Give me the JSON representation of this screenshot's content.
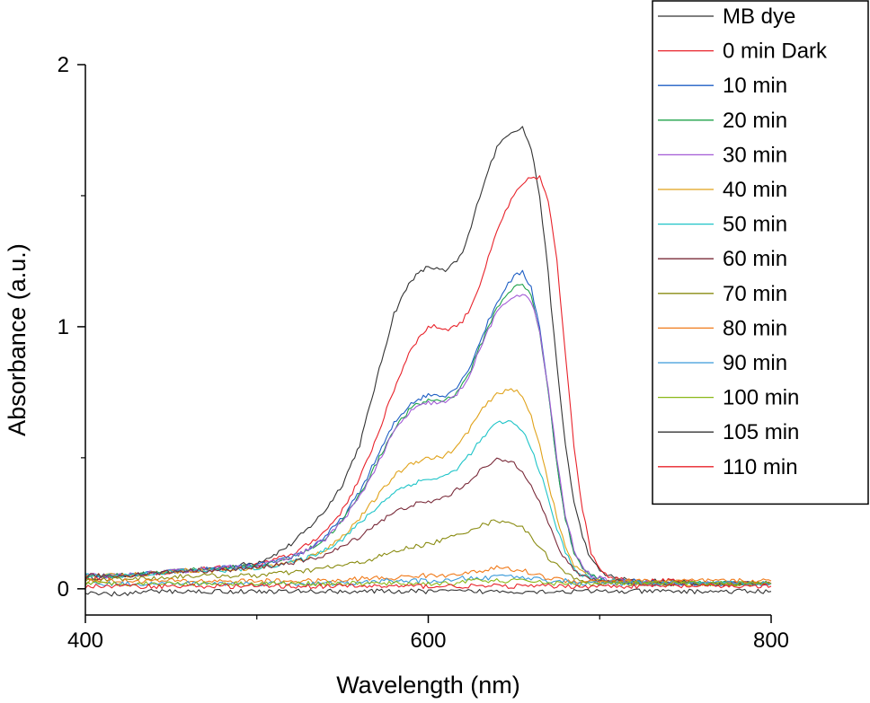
{
  "chart_data": {
    "type": "line",
    "title": "",
    "xlabel": "Wavelength (nm)",
    "ylabel": "Absorbance (a.u.)",
    "xlim": [
      400,
      800
    ],
    "ylim": [
      -0.1,
      2.0
    ],
    "x_ticks": [
      400,
      600,
      800
    ],
    "x_tick_labels": [
      "400",
      "600",
      "800"
    ],
    "x_minor_ticks": [
      500,
      700
    ],
    "y_ticks": [
      0,
      1,
      2
    ],
    "y_tick_labels": [
      "0",
      "1",
      "2"
    ],
    "y_minor_ticks": [
      0.5,
      1.5
    ],
    "grid": false,
    "legend_position": "top-right",
    "x": [
      400,
      420,
      440,
      460,
      480,
      500,
      510,
      520,
      530,
      540,
      550,
      560,
      570,
      580,
      590,
      600,
      605,
      610,
      615,
      620,
      625,
      630,
      635,
      640,
      645,
      650,
      655,
      660,
      665,
      670,
      675,
      680,
      685,
      690,
      695,
      700,
      705,
      710,
      720,
      740,
      760,
      780,
      800
    ],
    "series": [
      {
        "name": "MB dye",
        "color": "#333333",
        "values": [
          0.04,
          0.05,
          0.06,
          0.07,
          0.08,
          0.1,
          0.13,
          0.17,
          0.23,
          0.3,
          0.4,
          0.55,
          0.8,
          1.05,
          1.18,
          1.23,
          1.22,
          1.21,
          1.24,
          1.28,
          1.38,
          1.5,
          1.6,
          1.68,
          1.73,
          1.75,
          1.76,
          1.68,
          1.5,
          1.2,
          0.85,
          0.55,
          0.33,
          0.2,
          0.11,
          0.07,
          0.05,
          0.04,
          0.03,
          0.03,
          0.02,
          0.02,
          0.02
        ]
      },
      {
        "name": "0 min Dark",
        "color": "#e8222a",
        "values": [
          0.04,
          0.05,
          0.06,
          0.07,
          0.08,
          0.09,
          0.11,
          0.13,
          0.17,
          0.22,
          0.3,
          0.42,
          0.58,
          0.76,
          0.92,
          1.0,
          1.0,
          0.99,
          1.0,
          1.02,
          1.08,
          1.16,
          1.26,
          1.36,
          1.44,
          1.5,
          1.54,
          1.57,
          1.57,
          1.48,
          1.25,
          0.9,
          0.55,
          0.3,
          0.14,
          0.08,
          0.05,
          0.04,
          0.03,
          0.03,
          0.02,
          0.02,
          0.02
        ]
      },
      {
        "name": "10 min",
        "color": "#1f5fc4",
        "values": [
          0.05,
          0.05,
          0.06,
          0.07,
          0.08,
          0.09,
          0.1,
          0.12,
          0.15,
          0.2,
          0.27,
          0.37,
          0.5,
          0.63,
          0.71,
          0.74,
          0.74,
          0.74,
          0.76,
          0.8,
          0.86,
          0.94,
          1.02,
          1.09,
          1.15,
          1.19,
          1.21,
          1.15,
          1.0,
          0.75,
          0.48,
          0.27,
          0.14,
          0.08,
          0.05,
          0.04,
          0.03,
          0.03,
          0.03,
          0.02,
          0.02,
          0.02,
          0.02
        ]
      },
      {
        "name": "20 min",
        "color": "#1fa24a",
        "values": [
          0.05,
          0.05,
          0.06,
          0.07,
          0.08,
          0.09,
          0.1,
          0.12,
          0.15,
          0.19,
          0.26,
          0.36,
          0.48,
          0.61,
          0.69,
          0.72,
          0.72,
          0.72,
          0.74,
          0.78,
          0.84,
          0.92,
          1.0,
          1.07,
          1.12,
          1.15,
          1.16,
          1.12,
          0.98,
          0.75,
          0.48,
          0.27,
          0.14,
          0.08,
          0.05,
          0.04,
          0.03,
          0.03,
          0.03,
          0.02,
          0.02,
          0.02,
          0.02
        ]
      },
      {
        "name": "30 min",
        "color": "#a35ad6",
        "values": [
          0.05,
          0.05,
          0.06,
          0.07,
          0.08,
          0.09,
          0.1,
          0.12,
          0.15,
          0.19,
          0.26,
          0.35,
          0.47,
          0.6,
          0.68,
          0.71,
          0.71,
          0.71,
          0.73,
          0.77,
          0.83,
          0.91,
          0.99,
          1.05,
          1.09,
          1.12,
          1.12,
          1.1,
          0.98,
          0.76,
          0.5,
          0.28,
          0.15,
          0.08,
          0.05,
          0.04,
          0.03,
          0.03,
          0.03,
          0.02,
          0.02,
          0.02,
          0.02
        ]
      },
      {
        "name": "40 min",
        "color": "#e0a21a",
        "values": [
          0.05,
          0.05,
          0.06,
          0.07,
          0.07,
          0.08,
          0.09,
          0.1,
          0.12,
          0.15,
          0.2,
          0.27,
          0.35,
          0.43,
          0.48,
          0.5,
          0.5,
          0.51,
          0.53,
          0.57,
          0.62,
          0.67,
          0.71,
          0.74,
          0.76,
          0.76,
          0.73,
          0.66,
          0.55,
          0.41,
          0.27,
          0.16,
          0.09,
          0.06,
          0.04,
          0.03,
          0.03,
          0.03,
          0.02,
          0.02,
          0.02,
          0.02,
          0.02
        ]
      },
      {
        "name": "50 min",
        "color": "#1ec4c8",
        "values": [
          0.05,
          0.05,
          0.06,
          0.07,
          0.07,
          0.08,
          0.09,
          0.1,
          0.12,
          0.15,
          0.19,
          0.25,
          0.31,
          0.37,
          0.4,
          0.42,
          0.42,
          0.43,
          0.45,
          0.48,
          0.52,
          0.56,
          0.6,
          0.63,
          0.64,
          0.63,
          0.6,
          0.54,
          0.45,
          0.34,
          0.23,
          0.14,
          0.08,
          0.05,
          0.04,
          0.03,
          0.03,
          0.03,
          0.02,
          0.02,
          0.02,
          0.02,
          0.02
        ]
      },
      {
        "name": "60 min",
        "color": "#7a2b3a",
        "values": [
          0.05,
          0.05,
          0.06,
          0.07,
          0.07,
          0.08,
          0.09,
          0.1,
          0.11,
          0.13,
          0.16,
          0.2,
          0.25,
          0.29,
          0.32,
          0.33,
          0.34,
          0.35,
          0.37,
          0.39,
          0.42,
          0.45,
          0.47,
          0.49,
          0.49,
          0.48,
          0.45,
          0.4,
          0.33,
          0.25,
          0.17,
          0.11,
          0.07,
          0.05,
          0.04,
          0.03,
          0.03,
          0.03,
          0.02,
          0.02,
          0.02,
          0.02,
          0.02
        ]
      },
      {
        "name": "70 min",
        "color": "#8a8c12",
        "values": [
          0.03,
          0.04,
          0.04,
          0.05,
          0.05,
          0.05,
          0.06,
          0.06,
          0.07,
          0.08,
          0.09,
          0.1,
          0.12,
          0.14,
          0.16,
          0.17,
          0.18,
          0.19,
          0.2,
          0.21,
          0.23,
          0.24,
          0.25,
          0.26,
          0.26,
          0.25,
          0.23,
          0.2,
          0.16,
          0.12,
          0.09,
          0.06,
          0.04,
          0.03,
          0.03,
          0.02,
          0.02,
          0.02,
          0.02,
          0.02,
          0.02,
          0.02,
          0.02
        ]
      },
      {
        "name": "80 min",
        "color": "#f07a1a",
        "values": [
          0.03,
          0.03,
          0.03,
          0.03,
          0.03,
          0.03,
          0.03,
          0.03,
          0.03,
          0.03,
          0.03,
          0.04,
          0.04,
          0.04,
          0.05,
          0.05,
          0.05,
          0.05,
          0.06,
          0.06,
          0.06,
          0.07,
          0.07,
          0.08,
          0.08,
          0.07,
          0.07,
          0.06,
          0.05,
          0.04,
          0.04,
          0.03,
          0.03,
          0.03,
          0.03,
          0.03,
          0.03,
          0.03,
          0.03,
          0.03,
          0.03,
          0.03,
          0.03
        ]
      },
      {
        "name": "90 min",
        "color": "#3a9ad9",
        "values": [
          0.02,
          0.02,
          0.02,
          0.02,
          0.02,
          0.02,
          0.02,
          0.02,
          0.02,
          0.02,
          0.02,
          0.02,
          0.03,
          0.03,
          0.03,
          0.03,
          0.03,
          0.03,
          0.03,
          0.04,
          0.04,
          0.04,
          0.04,
          0.05,
          0.05,
          0.05,
          0.04,
          0.04,
          0.04,
          0.03,
          0.03,
          0.03,
          0.02,
          0.02,
          0.02,
          0.02,
          0.02,
          0.02,
          0.02,
          0.02,
          0.02,
          0.02,
          0.02
        ]
      },
      {
        "name": "100 min",
        "color": "#8ab818",
        "values": [
          0.02,
          0.02,
          0.02,
          0.02,
          0.02,
          0.02,
          0.02,
          0.02,
          0.02,
          0.02,
          0.02,
          0.02,
          0.02,
          0.02,
          0.02,
          0.02,
          0.02,
          0.02,
          0.02,
          0.03,
          0.03,
          0.03,
          0.03,
          0.03,
          0.03,
          0.03,
          0.03,
          0.03,
          0.03,
          0.02,
          0.02,
          0.02,
          0.02,
          0.02,
          0.02,
          0.02,
          0.02,
          0.02,
          0.02,
          0.02,
          0.02,
          0.02,
          0.02
        ]
      },
      {
        "name": "105 min",
        "color": "#333333",
        "values": [
          -0.02,
          -0.02,
          -0.01,
          -0.01,
          -0.01,
          -0.01,
          -0.01,
          -0.01,
          -0.01,
          -0.01,
          -0.01,
          -0.01,
          -0.01,
          -0.01,
          -0.01,
          -0.01,
          -0.01,
          -0.01,
          -0.01,
          -0.01,
          -0.01,
          -0.01,
          -0.01,
          -0.01,
          -0.01,
          -0.01,
          -0.01,
          -0.01,
          -0.01,
          -0.01,
          -0.01,
          -0.01,
          -0.01,
          -0.01,
          -0.01,
          -0.01,
          -0.01,
          -0.01,
          -0.01,
          -0.01,
          -0.01,
          -0.01,
          -0.01
        ]
      },
      {
        "name": "110 min",
        "color": "#e8222a",
        "values": [
          0.01,
          0.01,
          0.01,
          0.01,
          0.01,
          0.01,
          0.01,
          0.01,
          0.01,
          0.01,
          0.01,
          0.01,
          0.01,
          0.01,
          0.01,
          0.01,
          0.01,
          0.01,
          0.01,
          0.01,
          0.01,
          0.01,
          0.01,
          0.01,
          0.01,
          0.01,
          0.01,
          0.01,
          0.01,
          0.01,
          0.01,
          0.01,
          0.01,
          0.01,
          0.01,
          0.01,
          0.01,
          0.01,
          0.01,
          0.01,
          0.01,
          0.01,
          0.01
        ]
      }
    ]
  }
}
